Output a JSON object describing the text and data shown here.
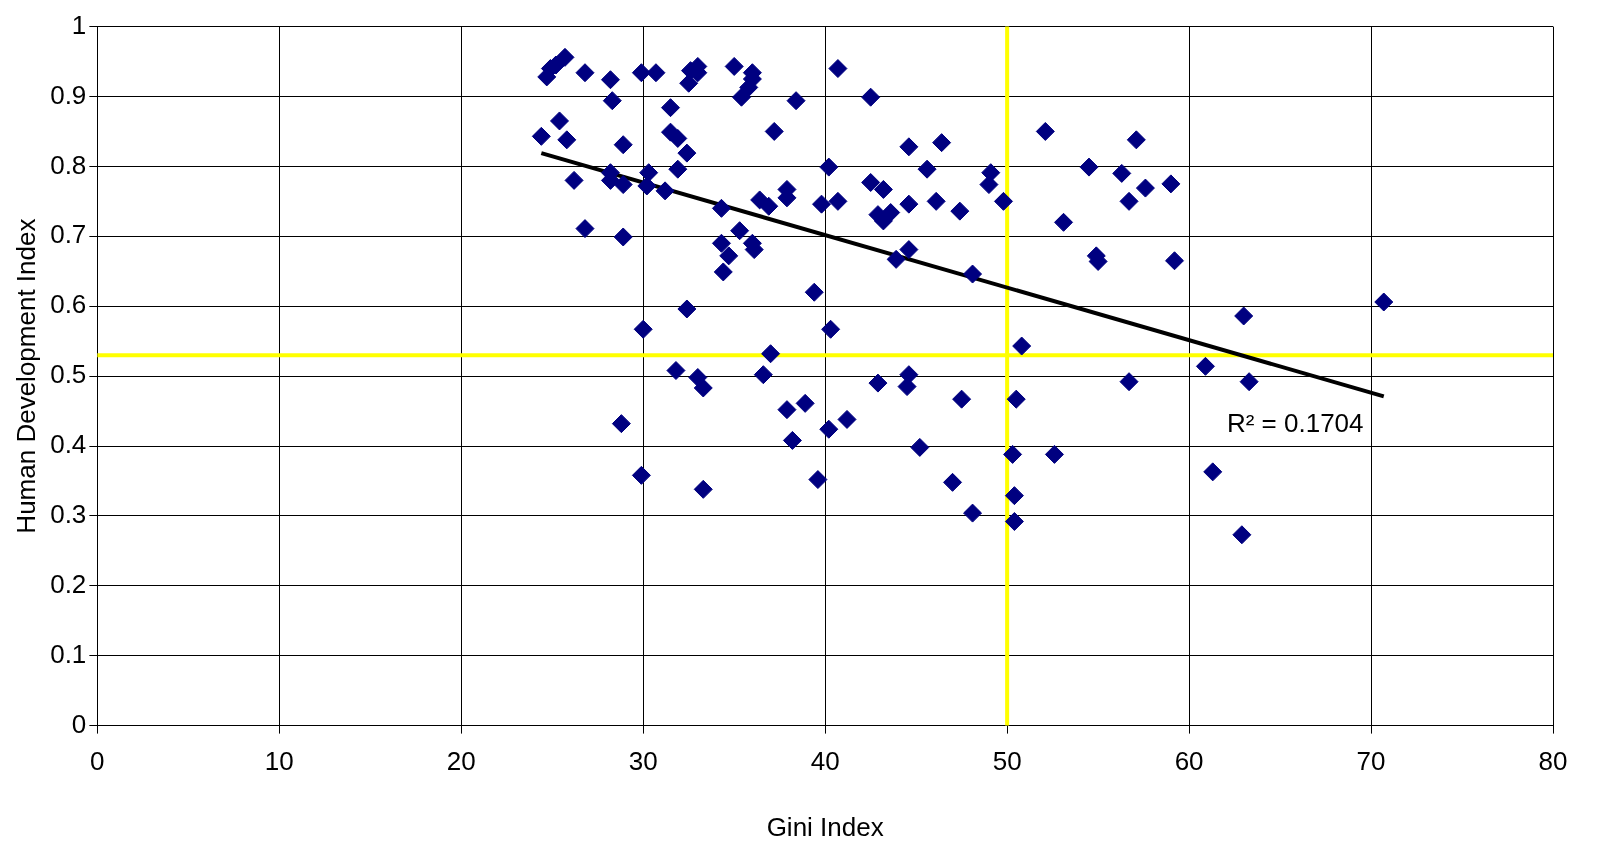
{
  "chart_data": {
    "type": "scatter",
    "xlabel": "Gini Index",
    "ylabel": "Human Development Index",
    "marker": "diamond",
    "grid": true,
    "xlim": [
      0,
      80
    ],
    "xticks": [
      0,
      10,
      20,
      30,
      40,
      50,
      60,
      70,
      80
    ],
    "ylim": [
      0,
      1
    ],
    "yticks": [
      0,
      0.1,
      0.2,
      0.3,
      0.4,
      0.5,
      0.6,
      0.7,
      0.8,
      0.9,
      1
    ],
    "series": [
      {
        "type": "scatter",
        "color": "#000080",
        "x": [
          24.4,
          24.7,
          24.9,
          25.2,
          25.4,
          25.7,
          25.8,
          26.2,
          26.8,
          26.8,
          28.2,
          28.3,
          28.2,
          28.2,
          28.9,
          28.9,
          28.9,
          28.8,
          29.9,
          30.0,
          29.9,
          30.3,
          30.2,
          30.7,
          31.2,
          31.5,
          31.5,
          31.9,
          31.9,
          31.8,
          32.4,
          32.4,
          32.5,
          32.6,
          33.0,
          33.0,
          33.0,
          33.3,
          33.3,
          34.3,
          34.3,
          34.4,
          34.7,
          35.0,
          35.4,
          35.3,
          36.0,
          36.0,
          35.8,
          36.1,
          36.0,
          36.4,
          36.9,
          36.6,
          37.0,
          37.2,
          37.9,
          37.9,
          37.9,
          38.2,
          38.4,
          38.9,
          39.4,
          39.6,
          39.8,
          40.2,
          40.2,
          40.3,
          40.7,
          40.7,
          41.2,
          42.5,
          42.5,
          42.9,
          42.9,
          43.2,
          43.2,
          43.6,
          43.9,
          44.6,
          44.6,
          44.6,
          44.6,
          44.5,
          45.2,
          45.6,
          46.1,
          46.4,
          47.0,
          47.4,
          47.5,
          48.1,
          48.1,
          49.0,
          49.1,
          49.8,
          50.3,
          50.5,
          50.4,
          50.4,
          50.8,
          52.1,
          52.6,
          53.1,
          54.5,
          54.9,
          55.0,
          56.3,
          56.7,
          56.7,
          57.1,
          57.6,
          59.0,
          59.2,
          60.9,
          61.3,
          63.0,
          63.3,
          62.9,
          70.7
        ],
        "values": [
          0.843,
          0.928,
          0.94,
          0.945,
          0.865,
          0.956,
          0.838,
          0.78,
          0.934,
          0.711,
          0.924,
          0.894,
          0.791,
          0.78,
          0.831,
          0.774,
          0.699,
          0.432,
          0.934,
          0.567,
          0.358,
          0.791,
          0.772,
          0.934,
          0.765,
          0.884,
          0.849,
          0.84,
          0.796,
          0.508,
          0.819,
          0.596,
          0.919,
          0.937,
          0.934,
          0.943,
          0.498,
          0.483,
          0.338,
          0.74,
          0.69,
          0.649,
          0.672,
          0.943,
          0.899,
          0.708,
          0.934,
          0.925,
          0.913,
          0.681,
          0.69,
          0.752,
          0.743,
          0.502,
          0.532,
          0.85,
          0.767,
          0.755,
          0.452,
          0.408,
          0.894,
          0.461,
          0.62,
          0.352,
          0.746,
          0.799,
          0.424,
          0.567,
          0.94,
          0.75,
          0.438,
          0.899,
          0.777,
          0.731,
          0.49,
          0.767,
          0.722,
          0.734,
          0.667,
          0.828,
          0.746,
          0.681,
          0.502,
          0.485,
          0.398,
          0.796,
          0.75,
          0.834,
          0.348,
          0.736,
          0.467,
          0.646,
          0.304,
          0.774,
          0.791,
          0.75,
          0.388,
          0.467,
          0.329,
          0.292,
          0.543,
          0.85,
          0.388,
          0.72,
          0.799,
          0.672,
          0.664,
          0.79,
          0.75,
          0.492,
          0.838,
          0.769,
          0.775,
          0.665,
          0.514,
          0.363,
          0.586,
          0.492,
          0.273,
          0.606
        ]
      },
      {
        "type": "line",
        "color": "#000000",
        "marker": "none",
        "x": [
          24.4,
          70.7
        ],
        "values": [
          0.819,
          0.471
        ]
      }
    ],
    "ref_lines": [
      {
        "axis": "y",
        "value": 0.53,
        "color": "#ffff00"
      },
      {
        "axis": "x",
        "value": 50,
        "color": "#ffff00"
      }
    ],
    "annotations": [
      "R² = 0.1704"
    ]
  }
}
